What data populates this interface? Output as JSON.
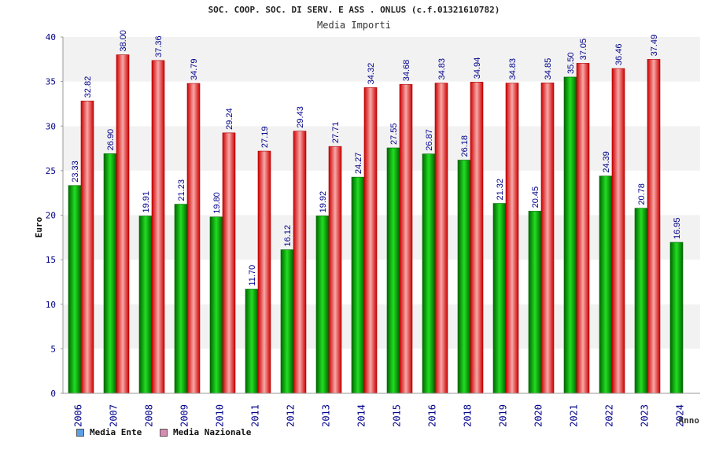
{
  "chart_data": {
    "type": "bar",
    "title": "SOC. COOP. SOC. DI SERV. E ASS . ONLUS (c.f.01321610782)",
    "subtitle": "Media Importi",
    "xlabel": "Anno",
    "ylabel": "Euro",
    "ylim": [
      0,
      40
    ],
    "yticks": [
      0,
      5,
      10,
      15,
      20,
      25,
      30,
      35,
      40
    ],
    "grid": true,
    "legend_position": "bottom-left",
    "categories": [
      "2006",
      "2007",
      "2008",
      "2009",
      "2010",
      "2011",
      "2012",
      "2013",
      "2014",
      "2015",
      "2016",
      "2018",
      "2019",
      "2020",
      "2021",
      "2022",
      "2023",
      "2024"
    ],
    "series": [
      {
        "name": "Media Ente",
        "color": "#00aa00",
        "legend_color": "#5aa0e8",
        "values": [
          23.33,
          26.9,
          19.91,
          21.23,
          19.8,
          11.7,
          16.12,
          19.92,
          24.27,
          27.55,
          26.87,
          26.18,
          21.32,
          20.45,
          35.5,
          24.39,
          20.78,
          16.95
        ],
        "labels": [
          "23.33",
          "26.90",
          "19.91",
          "21.23",
          "19.80",
          "11.70",
          "16.12",
          "19.92",
          "24.27",
          "27.55",
          "26.87",
          "26.18",
          "21.32",
          "20.45",
          "35.50",
          "24.39",
          "20.78",
          "16.95"
        ]
      },
      {
        "name": "Media Nazionale",
        "color": "#ee2222",
        "legend_color": "#d98cb3",
        "values": [
          32.82,
          38.0,
          37.36,
          34.79,
          29.24,
          27.19,
          29.43,
          27.71,
          34.32,
          34.68,
          34.83,
          34.94,
          34.83,
          34.85,
          37.05,
          36.46,
          37.49,
          null
        ],
        "labels": [
          "32.82",
          "38.00",
          "37.36",
          "34.79",
          "29.24",
          "27.19",
          "29.43",
          "27.71",
          "34.32",
          "34.68",
          "34.83",
          "34.94",
          "34.83",
          "34.85",
          "37.05",
          "36.46",
          "37.49",
          ""
        ]
      }
    ]
  }
}
